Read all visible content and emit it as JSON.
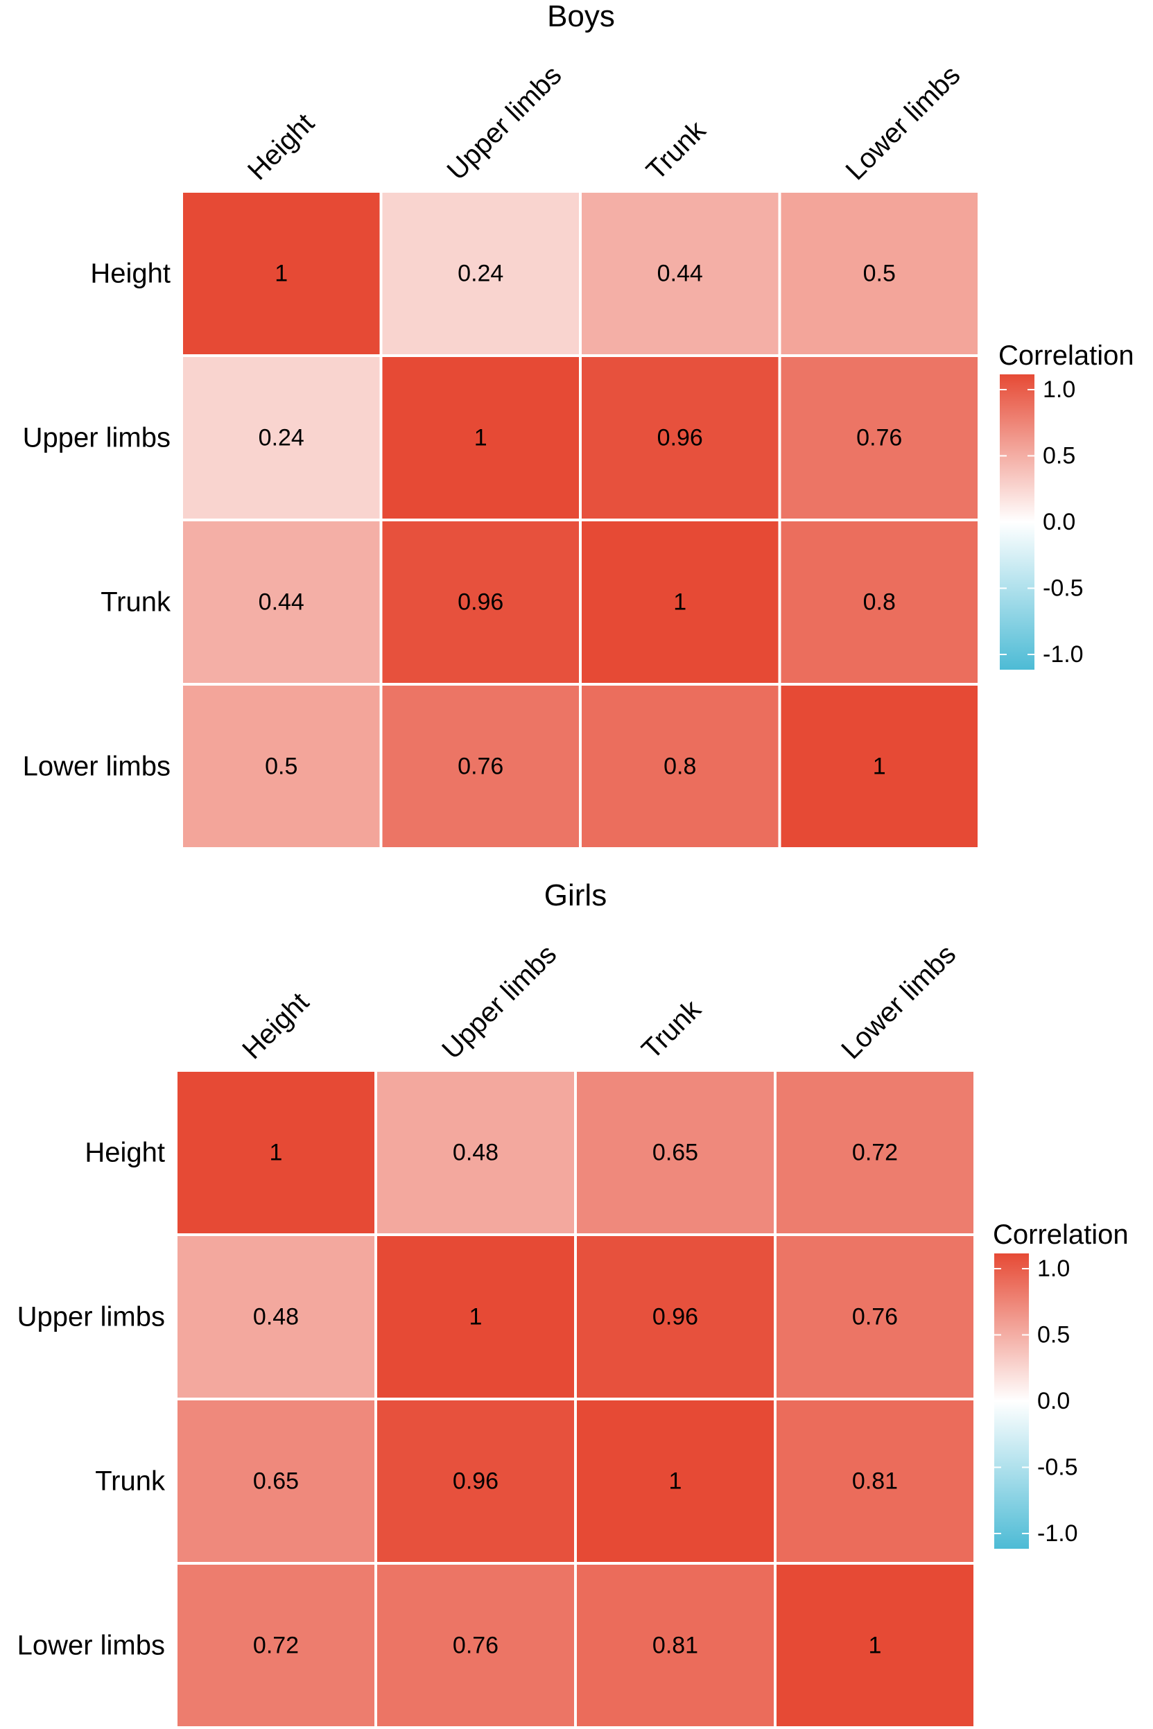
{
  "chart_data": [
    {
      "type": "heatmap",
      "title": "Boys",
      "x_categories": [
        "Height",
        "Upper limbs",
        "Trunk",
        "Lower limbs"
      ],
      "y_categories": [
        "Height",
        "Upper limbs",
        "Trunk",
        "Lower limbs"
      ],
      "values": [
        [
          1,
          0.24,
          0.44,
          0.5
        ],
        [
          0.24,
          1,
          0.96,
          0.76
        ],
        [
          0.44,
          0.96,
          1,
          0.8
        ],
        [
          0.5,
          0.76,
          0.8,
          1
        ]
      ],
      "value_labels": [
        [
          "1",
          "0.24",
          "0.44",
          "0.5"
        ],
        [
          "0.24",
          "1",
          "0.96",
          "0.76"
        ],
        [
          "0.44",
          "0.96",
          "1",
          "0.8"
        ],
        [
          "0.5",
          "0.76",
          "0.8",
          "1"
        ]
      ],
      "legend": {
        "title": "Correlation",
        "range": [
          -1,
          1
        ],
        "ticks": [
          1,
          0.5,
          0,
          -0.5,
          -1
        ],
        "tick_labels": [
          "1.0",
          "0.5",
          "0.0",
          "-0.5",
          "-1.0"
        ],
        "colors": {
          "high": "#E64A35",
          "mid": "#FFFFFF",
          "low": "#4DBBD5"
        }
      }
    },
    {
      "type": "heatmap",
      "title": "Girls",
      "x_categories": [
        "Height",
        "Upper limbs",
        "Trunk",
        "Lower limbs"
      ],
      "y_categories": [
        "Height",
        "Upper limbs",
        "Trunk",
        "Lower limbs"
      ],
      "values": [
        [
          1,
          0.48,
          0.65,
          0.72
        ],
        [
          0.48,
          1,
          0.96,
          0.76
        ],
        [
          0.65,
          0.96,
          1,
          0.81
        ],
        [
          0.72,
          0.76,
          0.81,
          1
        ]
      ],
      "value_labels": [
        [
          "1",
          "0.48",
          "0.65",
          "0.72"
        ],
        [
          "0.48",
          "1",
          "0.96",
          "0.76"
        ],
        [
          "0.65",
          "0.96",
          "1",
          "0.81"
        ],
        [
          "0.72",
          "0.76",
          "0.81",
          "1"
        ]
      ],
      "legend": {
        "title": "Correlation",
        "range": [
          -1,
          1
        ],
        "ticks": [
          1,
          0.5,
          0,
          -0.5,
          -1
        ],
        "tick_labels": [
          "1.0",
          "0.5",
          "0.0",
          "-0.5",
          "-1.0"
        ],
        "colors": {
          "high": "#E64A35",
          "mid": "#FFFFFF",
          "low": "#4DBBD5"
        }
      }
    }
  ]
}
